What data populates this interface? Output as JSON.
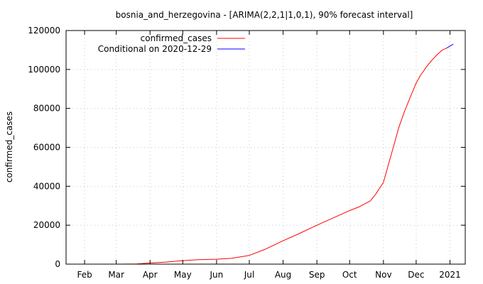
{
  "colors": {
    "observed": "#ff0000",
    "forecast": "#0000ff",
    "background": "#ffffff"
  },
  "chart_data": {
    "type": "line",
    "title": "bosnia_and_herzegovina -  [ARIMA(2,2,1|1,0,1), 90% forecast interval]",
    "xlabel": "",
    "ylabel": "confirmed_cases",
    "xlim": [
      "2020-01-15",
      "2021-01-15"
    ],
    "ylim": [
      0,
      120000
    ],
    "grid": true,
    "legend_position": "top-left",
    "x_tick_labels": [
      "Feb",
      "Mar",
      "Apr",
      "May",
      "Jun",
      "Jul",
      "Aug",
      "Sep",
      "Oct",
      "Nov",
      "Dec",
      "2021"
    ],
    "x_tick_dates": [
      "2020-02-01",
      "2020-03-01",
      "2020-04-01",
      "2020-05-01",
      "2020-06-01",
      "2020-07-01",
      "2020-08-01",
      "2020-09-01",
      "2020-10-01",
      "2020-11-01",
      "2020-12-01",
      "2021-01-01"
    ],
    "y_tick_labels": [
      "0",
      "20000",
      "40000",
      "60000",
      "80000",
      "100000",
      "120000"
    ],
    "y_tick_values": [
      0,
      20000,
      40000,
      60000,
      80000,
      100000,
      120000
    ],
    "series": [
      {
        "name": "confirmed_cases",
        "color": "#ff0000",
        "x": [
          "2020-03-05",
          "2020-03-20",
          "2020-04-01",
          "2020-04-15",
          "2020-05-01",
          "2020-05-15",
          "2020-06-01",
          "2020-06-15",
          "2020-07-01",
          "2020-07-15",
          "2020-08-01",
          "2020-08-15",
          "2020-09-01",
          "2020-09-15",
          "2020-10-01",
          "2020-10-10",
          "2020-10-20",
          "2020-10-25",
          "2020-11-01",
          "2020-11-05",
          "2020-11-10",
          "2020-11-15",
          "2020-11-20",
          "2020-11-25",
          "2020-12-01",
          "2020-12-05",
          "2020-12-10",
          "2020-12-15",
          "2020-12-20",
          "2020-12-25",
          "2020-12-29"
        ],
        "y": [
          0,
          100,
          600,
          1000,
          1800,
          2300,
          2500,
          3000,
          4500,
          7500,
          12000,
          15500,
          20000,
          23500,
          27500,
          29500,
          32500,
          36000,
          42000,
          50000,
          60000,
          70000,
          78000,
          85000,
          93000,
          97000,
          101000,
          104500,
          107500,
          110000,
          111000
        ]
      },
      {
        "name": "Conditional on 2020-12-29",
        "color": "#0000ff",
        "x": [
          "2020-12-29",
          "2021-01-01",
          "2021-01-04"
        ],
        "y": [
          111000,
          112000,
          113000
        ]
      }
    ]
  }
}
